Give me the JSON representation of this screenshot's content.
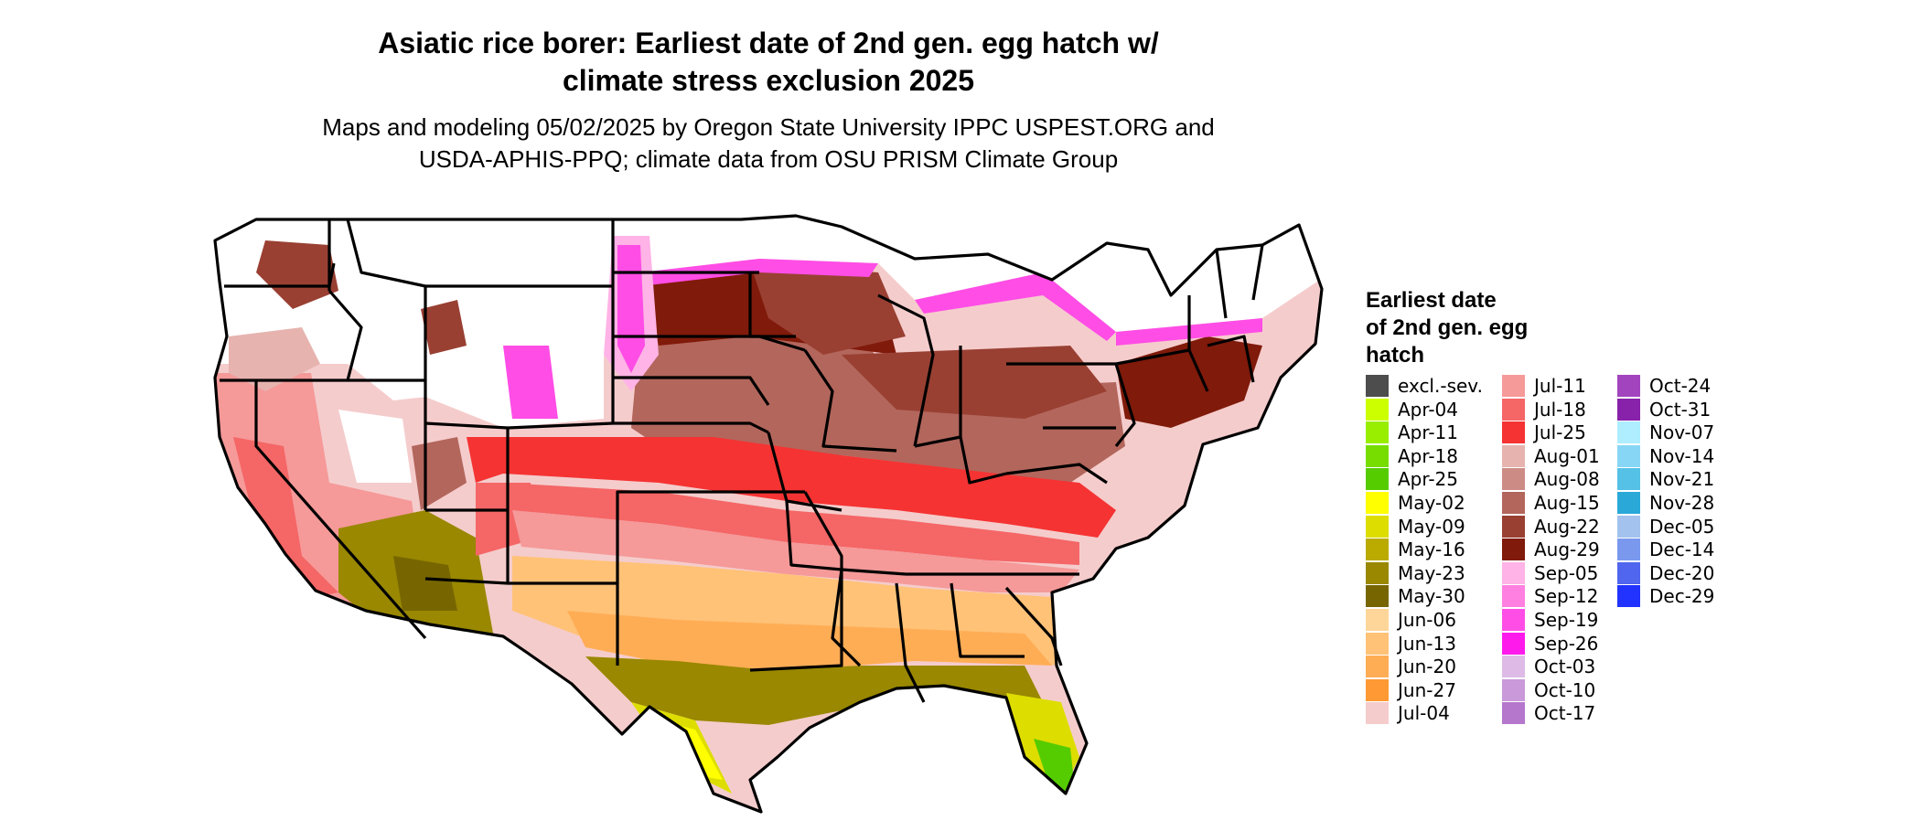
{
  "title": {
    "line1": "Asiatic rice borer: Earliest date of 2nd gen. egg hatch w/",
    "line2": "climate stress exclusion 2025"
  },
  "subtitle": {
    "line1": "Maps and modeling 05/02/2025 by Oregon State University IPPC USPEST.ORG and",
    "line2": "USDA-APHIS-PPQ; climate data from OSU PRISM Climate Group"
  },
  "legend": {
    "title_lines": [
      "Earliest date",
      "of 2nd gen. egg",
      "hatch"
    ],
    "columns": [
      [
        {
          "label": "excl.-sev.",
          "color": "#4d4d4d"
        },
        {
          "label": "Apr-04",
          "color": "#ccff00"
        },
        {
          "label": "Apr-11",
          "color": "#99ee00"
        },
        {
          "label": "Apr-18",
          "color": "#77dd00"
        },
        {
          "label": "Apr-25",
          "color": "#55cc00"
        },
        {
          "label": "May-02",
          "color": "#ffff00"
        },
        {
          "label": "May-09",
          "color": "#dddd00"
        },
        {
          "label": "May-16",
          "color": "#bbaa00"
        },
        {
          "label": "May-23",
          "color": "#998800"
        },
        {
          "label": "May-30",
          "color": "#776600"
        },
        {
          "label": "Jun-06",
          "color": "#ffd699"
        },
        {
          "label": "Jun-13",
          "color": "#ffc277"
        },
        {
          "label": "Jun-20",
          "color": "#ffad55"
        },
        {
          "label": "Jun-27",
          "color": "#ff9933"
        },
        {
          "label": "Jul-04",
          "color": "#f5cccc"
        }
      ],
      [
        {
          "label": "Jul-11",
          "color": "#f59999"
        },
        {
          "label": "Jul-18",
          "color": "#f56666"
        },
        {
          "label": "Jul-25",
          "color": "#f53333"
        },
        {
          "label": "Aug-01",
          "color": "#e6b3ae"
        },
        {
          "label": "Aug-08",
          "color": "#cc8c85"
        },
        {
          "label": "Aug-15",
          "color": "#b3665c"
        },
        {
          "label": "Aug-22",
          "color": "#994033"
        },
        {
          "label": "Aug-29",
          "color": "#801a0a"
        },
        {
          "label": "Sep-05",
          "color": "#ffb3e6"
        },
        {
          "label": "Sep-12",
          "color": "#ff80e0"
        },
        {
          "label": "Sep-19",
          "color": "#ff4de6"
        },
        {
          "label": "Sep-26",
          "color": "#ff1aec"
        },
        {
          "label": "Oct-03",
          "color": "#ddbbe6"
        },
        {
          "label": "Oct-10",
          "color": "#c999d9"
        },
        {
          "label": "Oct-17",
          "color": "#b577cc"
        }
      ],
      [
        {
          "label": "Oct-24",
          "color": "#a344bf"
        },
        {
          "label": "Oct-31",
          "color": "#8822aa"
        },
        {
          "label": "Nov-07",
          "color": "#aeeeff"
        },
        {
          "label": "Nov-14",
          "color": "#88d6f5"
        },
        {
          "label": "Nov-21",
          "color": "#55c1e6"
        },
        {
          "label": "Nov-28",
          "color": "#2aa9d9"
        },
        {
          "label": "Dec-05",
          "color": "#a3c2ee"
        },
        {
          "label": "Dec-14",
          "color": "#7a99ee"
        },
        {
          "label": "Dec-20",
          "color": "#5066ee"
        },
        {
          "label": "Dec-29",
          "color": "#2233ff"
        }
      ]
    ]
  },
  "map_colors": {
    "white": "#ffffff",
    "magenta": "#ff4de6",
    "pink_light": "#ffb3e6",
    "aug29": "#801a0a",
    "aug22": "#994033",
    "aug15": "#b3665c",
    "aug01": "#e6b3ae",
    "jul25": "#f53333",
    "jul18": "#f56666",
    "jul11": "#f59999",
    "jul04": "#f5cccc",
    "jun20": "#ffad55",
    "jun13": "#ffc277",
    "may23": "#998800",
    "may30": "#776600",
    "may09": "#dddd00",
    "may02": "#ffff00",
    "apr25": "#55cc00",
    "border": "#000000"
  }
}
